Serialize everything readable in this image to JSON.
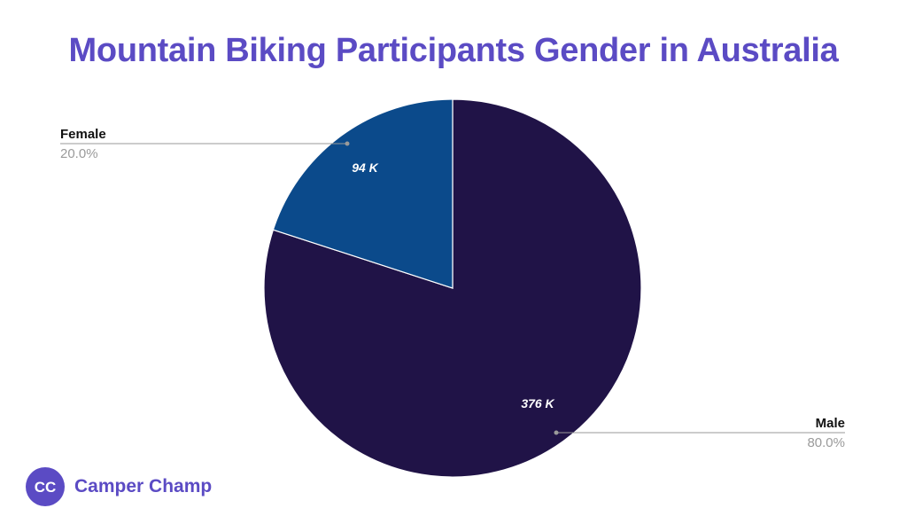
{
  "chart_data": {
    "type": "pie",
    "title": "Mountain Biking Participants Gender in Australia",
    "slices": [
      {
        "label": "Female",
        "value": 94,
        "value_label": "94 K",
        "percent_label": "20.0%",
        "color": "#0b4a8b"
      },
      {
        "label": "Male",
        "value": 376,
        "value_label": "376 K",
        "percent_label": "80.0%",
        "color": "#201347"
      }
    ],
    "start": "12 o'clock, clockwise from Male"
  },
  "colors": {
    "title": "#5b4bc4",
    "brand": "#5b4bc4"
  },
  "brand": {
    "logo_icon": "campervan-cc-logo-icon",
    "logo_text": "CC",
    "name": "Camper Champ"
  }
}
